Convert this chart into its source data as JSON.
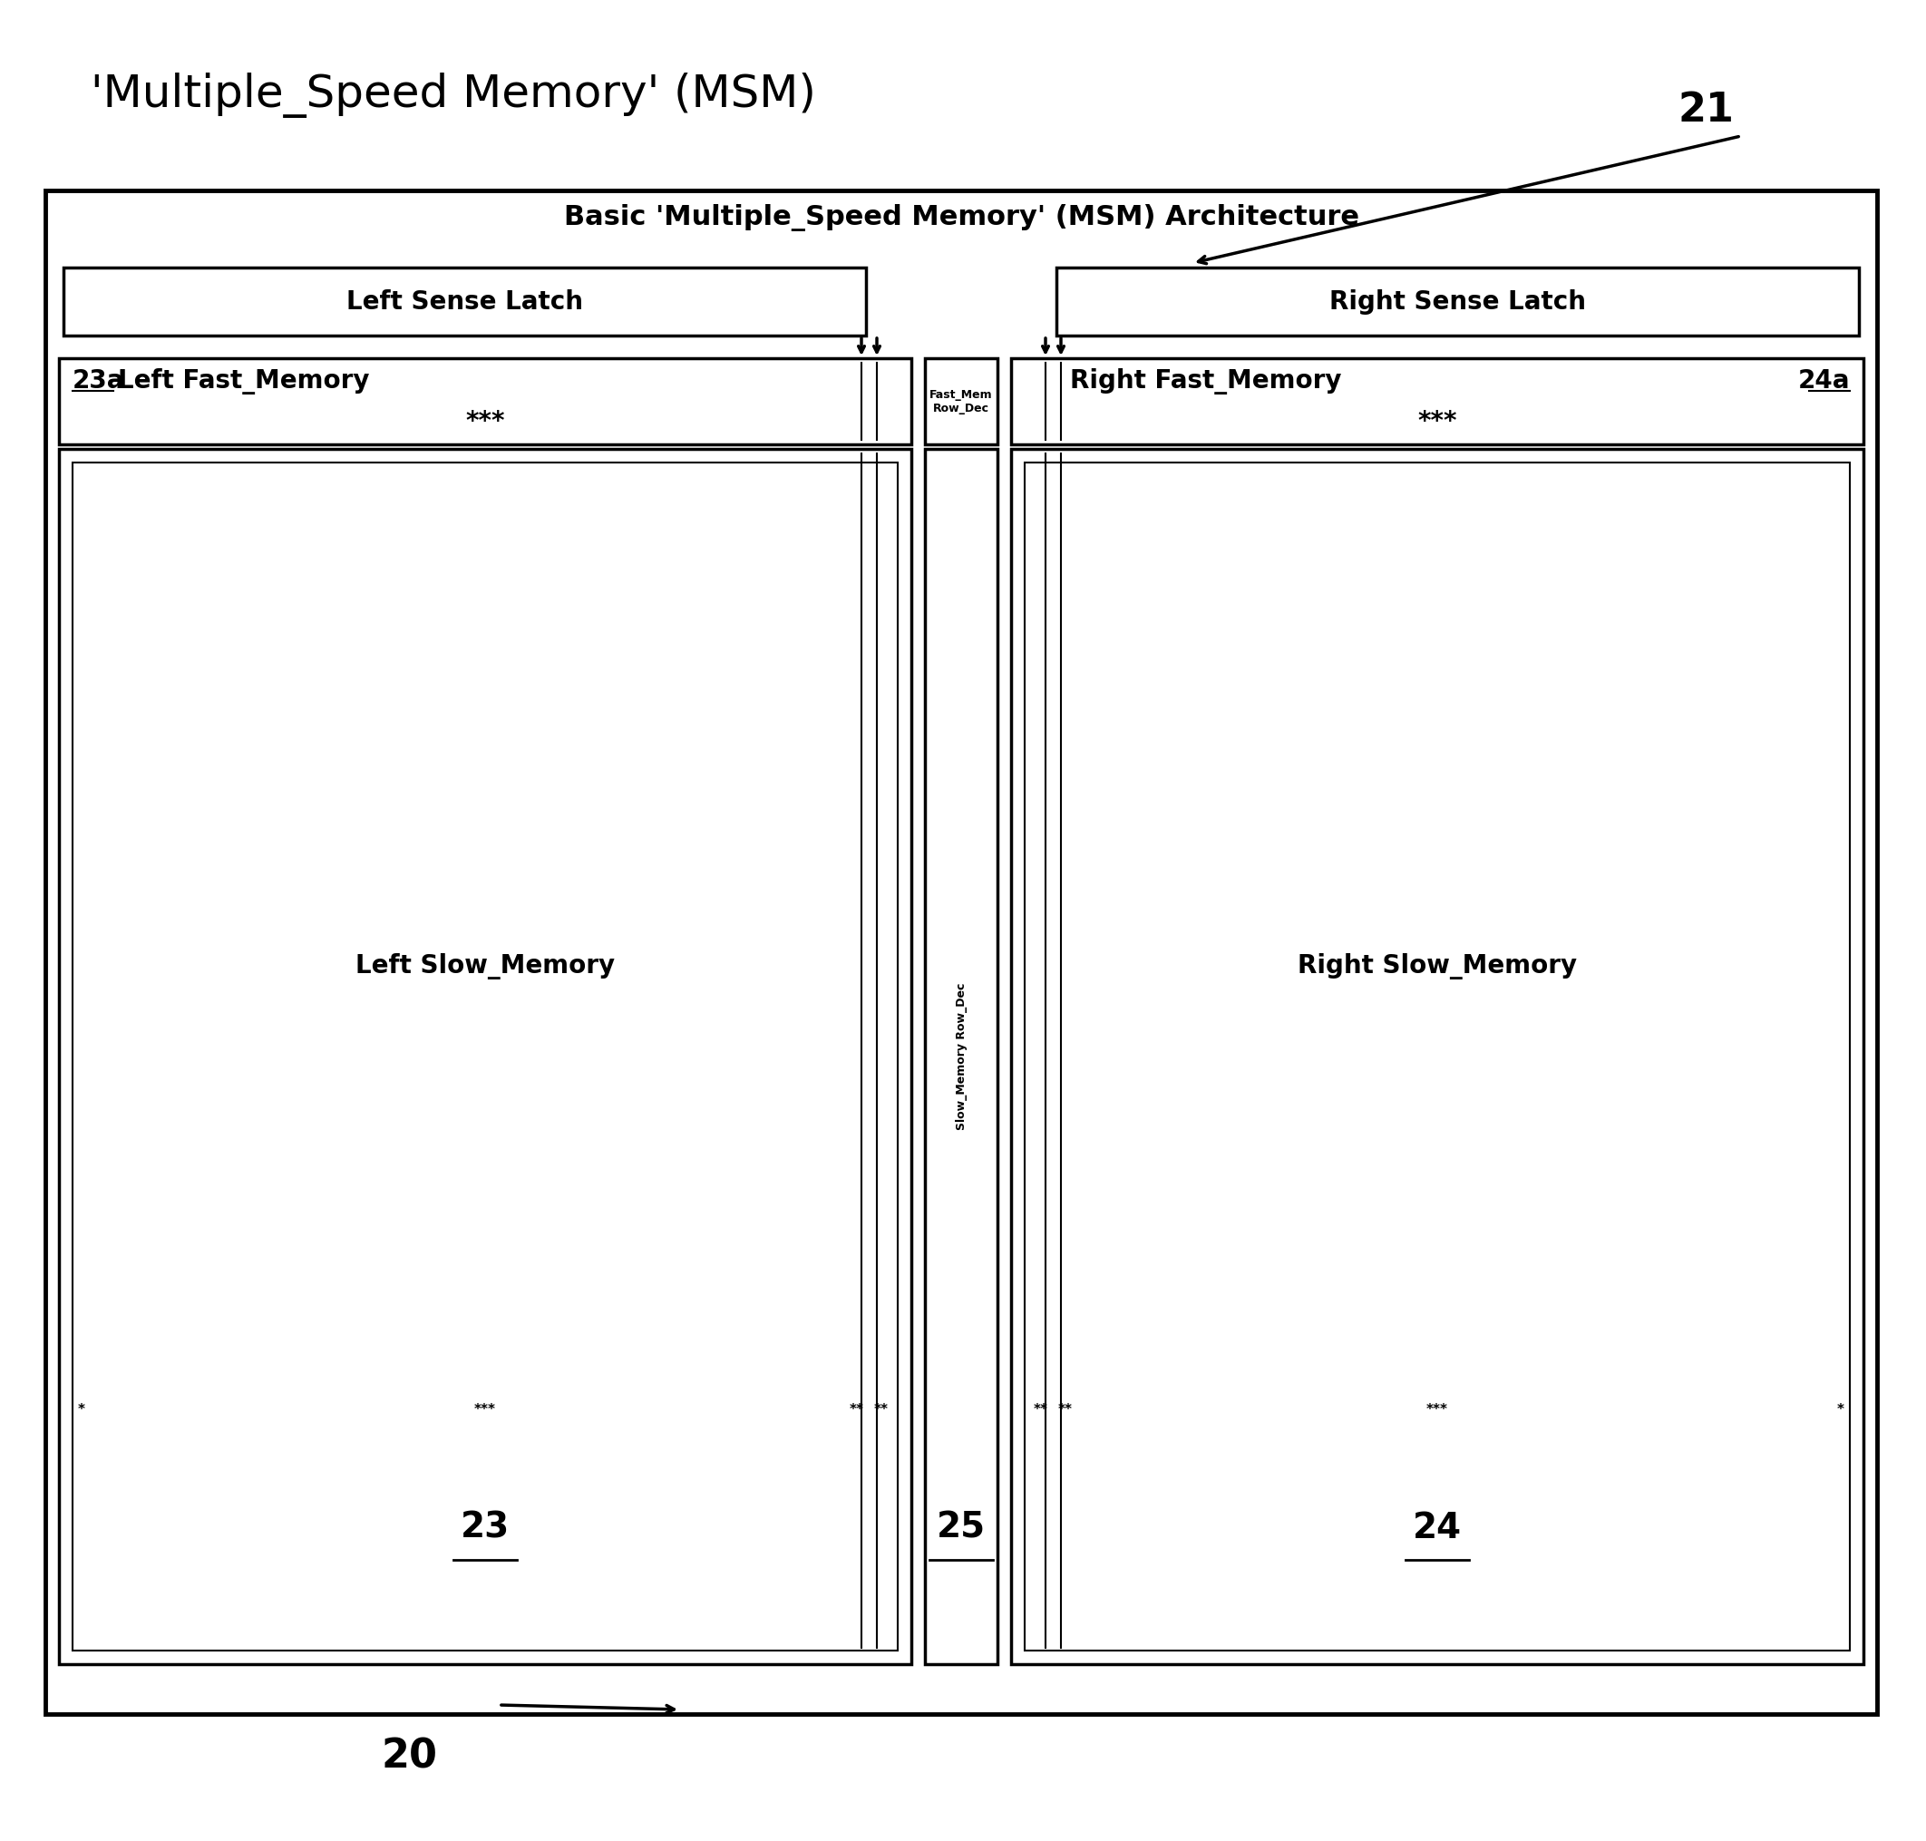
{
  "title": "'Multiple_Speed Memory' (MSM)",
  "outer_box_title": "Basic 'Multiple_Speed Memory' (MSM) Architecture",
  "label_21": "21",
  "label_20": "20",
  "label_23": "23",
  "label_23a": "23a",
  "label_24": "24",
  "label_24a": "24a",
  "label_25": "25",
  "left_sense_latch": "Left Sense Latch",
  "right_sense_latch": "Right Sense Latch",
  "left_fast_memory": "Left Fast_Memory",
  "right_fast_memory": "Right Fast_Memory",
  "fast_mem_row_dec": "Fast_Mem\nRow_Dec",
  "slow_memory_row_dec": "Slow_Memory Row_Dec",
  "left_slow_memory": "Left Slow_Memory",
  "right_slow_memory": "Right Slow_Memory",
  "dots": "***",
  "bg_color": "#ffffff",
  "box_color": "#000000",
  "text_color": "#000000",
  "title_fontsize": 36,
  "subtitle_fontsize": 22,
  "label_fontsize": 20,
  "small_fontsize": 14
}
